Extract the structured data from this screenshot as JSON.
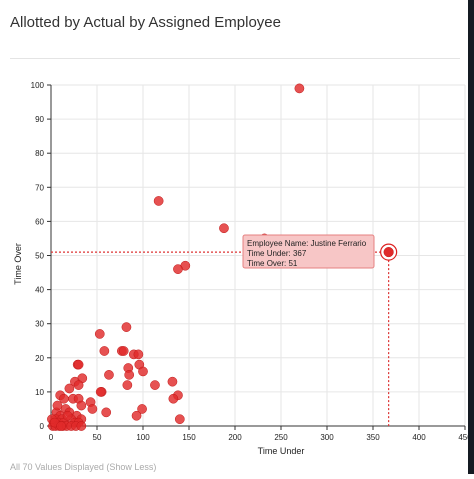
{
  "chart_data": {
    "type": "scatter",
    "title": "Allotted by Actual by Assigned Employee",
    "xlabel": "Time Under",
    "ylabel": "Time Over",
    "xlim": [
      0,
      450
    ],
    "ylim": [
      0,
      100
    ],
    "x_ticks": [
      0,
      50,
      100,
      150,
      200,
      250,
      300,
      350,
      400,
      450
    ],
    "y_ticks": [
      0,
      10,
      20,
      30,
      40,
      50,
      60,
      70,
      80,
      90,
      100
    ],
    "grid": true,
    "point_color": "#e02b2b",
    "points": [
      {
        "x": 270,
        "y": 99
      },
      {
        "x": 117,
        "y": 66
      },
      {
        "x": 188,
        "y": 58
      },
      {
        "x": 232,
        "y": 55
      },
      {
        "x": 146,
        "y": 47
      },
      {
        "x": 138,
        "y": 46
      },
      {
        "x": 367,
        "y": 51
      },
      {
        "x": 53,
        "y": 27
      },
      {
        "x": 82,
        "y": 29
      },
      {
        "x": 58,
        "y": 22
      },
      {
        "x": 77,
        "y": 22
      },
      {
        "x": 79,
        "y": 22
      },
      {
        "x": 90,
        "y": 21
      },
      {
        "x": 95,
        "y": 21
      },
      {
        "x": 96,
        "y": 18
      },
      {
        "x": 29,
        "y": 18
      },
      {
        "x": 30,
        "y": 18
      },
      {
        "x": 84,
        "y": 17
      },
      {
        "x": 100,
        "y": 16
      },
      {
        "x": 85,
        "y": 15
      },
      {
        "x": 63,
        "y": 15
      },
      {
        "x": 34,
        "y": 14
      },
      {
        "x": 26,
        "y": 13
      },
      {
        "x": 132,
        "y": 13
      },
      {
        "x": 20,
        "y": 11
      },
      {
        "x": 30,
        "y": 12
      },
      {
        "x": 83,
        "y": 12
      },
      {
        "x": 113,
        "y": 12
      },
      {
        "x": 55,
        "y": 10
      },
      {
        "x": 54,
        "y": 10
      },
      {
        "x": 10,
        "y": 9
      },
      {
        "x": 14,
        "y": 8
      },
      {
        "x": 24,
        "y": 8
      },
      {
        "x": 30,
        "y": 8
      },
      {
        "x": 138,
        "y": 9
      },
      {
        "x": 133,
        "y": 8
      },
      {
        "x": 43,
        "y": 7
      },
      {
        "x": 33,
        "y": 6
      },
      {
        "x": 45,
        "y": 5
      },
      {
        "x": 99,
        "y": 5
      },
      {
        "x": 16,
        "y": 5
      },
      {
        "x": 6,
        "y": 4
      },
      {
        "x": 20,
        "y": 4
      },
      {
        "x": 60,
        "y": 4
      },
      {
        "x": 93,
        "y": 3
      },
      {
        "x": 10,
        "y": 3
      },
      {
        "x": 28,
        "y": 3
      },
      {
        "x": 5,
        "y": 2
      },
      {
        "x": 12,
        "y": 2
      },
      {
        "x": 22,
        "y": 2
      },
      {
        "x": 33,
        "y": 2
      },
      {
        "x": 140,
        "y": 2
      },
      {
        "x": 3,
        "y": 1
      },
      {
        "x": 8,
        "y": 1
      },
      {
        "x": 14,
        "y": 1
      },
      {
        "x": 26,
        "y": 1
      },
      {
        "x": 30,
        "y": 1
      },
      {
        "x": 2,
        "y": 0
      },
      {
        "x": 5,
        "y": 0
      },
      {
        "x": 9,
        "y": 0
      },
      {
        "x": 13,
        "y": 0
      },
      {
        "x": 17,
        "y": 0
      },
      {
        "x": 22,
        "y": 0
      },
      {
        "x": 27,
        "y": 0
      },
      {
        "x": 33,
        "y": 0
      },
      {
        "x": 1,
        "y": 2
      },
      {
        "x": 7,
        "y": 6
      },
      {
        "x": 18,
        "y": 3
      },
      {
        "x": 4,
        "y": 1
      },
      {
        "x": 11,
        "y": 0
      }
    ],
    "highlight": {
      "x": 367,
      "y": 51
    },
    "tooltip": {
      "lines": [
        "Employee Name: Justine Ferrario",
        "Time Under: 367",
        "Time Over: 51"
      ]
    }
  },
  "footer": {
    "text": "All 70 Values Displayed (Show Less)"
  }
}
